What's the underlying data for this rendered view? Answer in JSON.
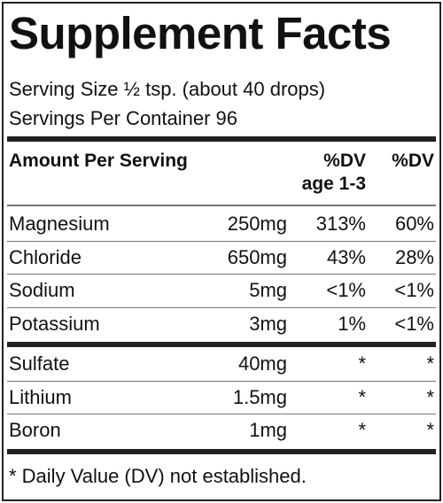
{
  "title": "Supplement Facts",
  "serving": [
    "Serving Size ½ tsp. (about 40 drops)",
    "Servings Per Container 96"
  ],
  "header": {
    "nutrient": "Amount Per Serving",
    "dv_child": [
      "%DV",
      "age 1-3"
    ],
    "dv": "%DV"
  },
  "groups": [
    [
      [
        "Magnesium",
        "250mg",
        "313%",
        "60%"
      ],
      [
        "Chloride",
        "650mg",
        "43%",
        "28%"
      ],
      [
        "Sodium",
        "5mg",
        "<1%",
        "<1%"
      ],
      [
        "Potassium",
        "3mg",
        "1%",
        "<1%"
      ]
    ],
    [
      [
        "Sulfate",
        "40mg",
        "*",
        "*"
      ],
      [
        "Lithium",
        "1.5mg",
        "*",
        "*"
      ],
      [
        "Boron",
        "1mg",
        "*",
        "*"
      ]
    ]
  ],
  "footnote": "* Daily Value (DV) not established."
}
